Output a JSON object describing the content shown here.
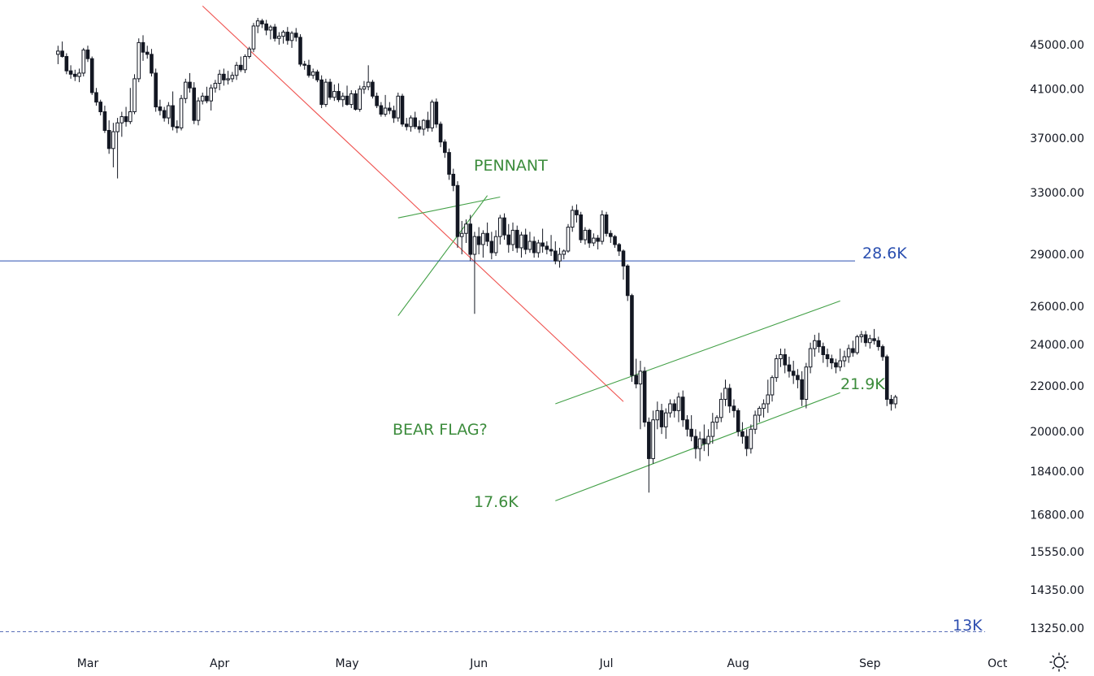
{
  "chart_data": {
    "type": "candlestick",
    "scale": "log",
    "y_ticks": [
      "45000.00",
      "41000.00",
      "37000.00",
      "33000.00",
      "29000.00",
      "26000.00",
      "24000.00",
      "22000.00",
      "20000.00",
      "18400.00",
      "16800.00",
      "15550.00",
      "14350.00",
      "13250.00"
    ],
    "y_tick_values": [
      45000,
      41000,
      37000,
      33000,
      29000,
      26000,
      24000,
      22000,
      20000,
      18400,
      16800,
      15550,
      14350,
      13250
    ],
    "x_ticks": [
      "Mar",
      "Apr",
      "May",
      "Jun",
      "Jul",
      "Aug",
      "Sep",
      "Oct"
    ],
    "x_tick_dates": [
      "2022-03-01",
      "2022-04-01",
      "2022-05-01",
      "2022-06-01",
      "2022-07-01",
      "2022-08-01",
      "2022-09-01",
      "2022-10-01"
    ],
    "first_candle_date": "2022-02-22",
    "candles": [
      [
        44100,
        44900,
        43200,
        44400
      ],
      [
        44400,
        45300,
        43800,
        43900
      ],
      [
        43900,
        44200,
        42300,
        42600
      ],
      [
        42600,
        43100,
        41900,
        42300
      ],
      [
        42300,
        42700,
        41700,
        42100
      ],
      [
        42100,
        42800,
        41600,
        42400
      ],
      [
        42400,
        44700,
        42100,
        44500
      ],
      [
        44500,
        44900,
        43400,
        43700
      ],
      [
        43700,
        43900,
        40500,
        40700
      ],
      [
        40700,
        41100,
        39600,
        39900
      ],
      [
        39900,
        40100,
        38800,
        39100
      ],
      [
        39100,
        39600,
        37400,
        37600
      ],
      [
        37600,
        38400,
        35800,
        36200
      ],
      [
        36200,
        38200,
        34800,
        37500
      ],
      [
        37500,
        38600,
        34000,
        38200
      ],
      [
        38200,
        39100,
        37100,
        38700
      ],
      [
        38700,
        39500,
        37900,
        38300
      ],
      [
        38300,
        41100,
        38100,
        39100
      ],
      [
        39100,
        42300,
        38900,
        41900
      ],
      [
        41900,
        45600,
        41600,
        45200
      ],
      [
        45200,
        45900,
        43500,
        44300
      ],
      [
        44300,
        44900,
        43700,
        44100
      ],
      [
        44100,
        44600,
        42100,
        42400
      ],
      [
        42400,
        42800,
        39100,
        39500
      ],
      [
        39500,
        40100,
        38800,
        39200
      ],
      [
        39200,
        39500,
        38300,
        38600
      ],
      [
        38600,
        39900,
        38100,
        39600
      ],
      [
        39600,
        40800,
        37600,
        37900
      ],
      [
        37900,
        38400,
        37400,
        37800
      ],
      [
        37800,
        40500,
        37600,
        40200
      ],
      [
        40200,
        41900,
        39800,
        41600
      ],
      [
        41600,
        42400,
        40700,
        41100
      ],
      [
        41100,
        41600,
        38100,
        38400
      ],
      [
        38400,
        40300,
        38000,
        40000
      ],
      [
        40000,
        40700,
        39700,
        40400
      ],
      [
        40400,
        41200,
        39800,
        40000
      ],
      [
        40000,
        41400,
        39200,
        41100
      ],
      [
        41100,
        41800,
        40700,
        41500
      ],
      [
        41500,
        42700,
        40900,
        42300
      ],
      [
        42300,
        42800,
        41300,
        41800
      ],
      [
        41800,
        42600,
        41400,
        41900
      ],
      [
        41900,
        42500,
        41600,
        42200
      ],
      [
        42200,
        43400,
        41800,
        43100
      ],
      [
        43100,
        43900,
        42500,
        42700
      ],
      [
        42700,
        44100,
        42400,
        43900
      ],
      [
        43900,
        44800,
        43700,
        44600
      ],
      [
        44600,
        47100,
        44300,
        46800
      ],
      [
        46800,
        47600,
        46100,
        47300
      ],
      [
        47300,
        47500,
        46600,
        47000
      ],
      [
        47000,
        47400,
        45900,
        46400
      ],
      [
        46400,
        46900,
        45500,
        46700
      ],
      [
        46700,
        47000,
        45300,
        45600
      ],
      [
        45600,
        46200,
        45000,
        45800
      ],
      [
        45800,
        46400,
        45100,
        46200
      ],
      [
        46200,
        46700,
        45000,
        45400
      ],
      [
        45400,
        46300,
        44700,
        46100
      ],
      [
        46100,
        46600,
        45300,
        45700
      ],
      [
        45700,
        46000,
        43000,
        43200
      ],
      [
        43200,
        43500,
        42700,
        43100
      ],
      [
        43100,
        43600,
        42000,
        42200
      ],
      [
        42200,
        42800,
        41900,
        42500
      ],
      [
        42500,
        42700,
        41600,
        41800
      ],
      [
        41800,
        42200,
        39400,
        39700
      ],
      [
        39700,
        41900,
        39500,
        41600
      ],
      [
        41600,
        41900,
        40100,
        40300
      ],
      [
        40300,
        41400,
        40000,
        40800
      ],
      [
        40800,
        41500,
        39900,
        40100
      ],
      [
        40100,
        40700,
        39500,
        40400
      ],
      [
        40400,
        41300,
        39600,
        39700
      ],
      [
        39700,
        40900,
        39400,
        40600
      ],
      [
        40600,
        40900,
        39200,
        39300
      ],
      [
        39300,
        41300,
        39100,
        41000
      ],
      [
        41000,
        41700,
        40600,
        41200
      ],
      [
        41200,
        43100,
        40900,
        41600
      ],
      [
        41600,
        41800,
        40200,
        40400
      ],
      [
        40400,
        40700,
        39400,
        39600
      ],
      [
        39600,
        39900,
        38700,
        38900
      ],
      [
        38900,
        40500,
        38700,
        39400
      ],
      [
        39400,
        39900,
        38900,
        39200
      ],
      [
        39200,
        39600,
        38200,
        38600
      ],
      [
        38600,
        40700,
        38300,
        40400
      ],
      [
        40400,
        40600,
        37900,
        38100
      ],
      [
        38100,
        38600,
        37600,
        37900
      ],
      [
        37900,
        38800,
        37500,
        38600
      ],
      [
        38600,
        39100,
        37700,
        37900
      ],
      [
        37900,
        38400,
        37400,
        37700
      ],
      [
        37700,
        38500,
        37200,
        38400
      ],
      [
        38400,
        39100,
        37500,
        37800
      ],
      [
        37800,
        40100,
        37500,
        39900
      ],
      [
        39900,
        40200,
        37800,
        38100
      ],
      [
        38100,
        38300,
        36300,
        36700
      ],
      [
        36700,
        36900,
        35500,
        35900
      ],
      [
        35900,
        36200,
        33900,
        34300
      ],
      [
        34300,
        34700,
        33100,
        33500
      ],
      [
        33500,
        33800,
        29400,
        30100
      ],
      [
        30100,
        31100,
        29000,
        30300
      ],
      [
        30300,
        31200,
        29700,
        30900
      ],
      [
        30900,
        31500,
        28600,
        29000
      ],
      [
        29000,
        30400,
        25600,
        30100
      ],
      [
        30100,
        30700,
        29000,
        29600
      ],
      [
        29600,
        30500,
        28800,
        30300
      ],
      [
        30300,
        31000,
        29500,
        29800
      ],
      [
        29800,
        30400,
        28700,
        29100
      ],
      [
        29100,
        30500,
        28900,
        30100
      ],
      [
        30100,
        31500,
        29600,
        31300
      ],
      [
        31300,
        31600,
        29900,
        30200
      ],
      [
        30200,
        30900,
        29100,
        29600
      ],
      [
        29600,
        31000,
        29200,
        30500
      ],
      [
        30500,
        30800,
        29100,
        29400
      ],
      [
        29400,
        30400,
        28800,
        30200
      ],
      [
        30200,
        30600,
        29000,
        29300
      ],
      [
        29300,
        30400,
        29100,
        29800
      ],
      [
        29800,
        30100,
        28800,
        29100
      ],
      [
        29100,
        29900,
        28800,
        29700
      ],
      [
        29700,
        30600,
        29100,
        29500
      ],
      [
        29500,
        29800,
        29000,
        29300
      ],
      [
        29300,
        30200,
        28900,
        29200
      ],
      [
        29200,
        29800,
        28400,
        28600
      ],
      [
        28600,
        29400,
        28200,
        29000
      ],
      [
        29000,
        29300,
        28700,
        29200
      ],
      [
        29200,
        30900,
        29100,
        30700
      ],
      [
        30700,
        32100,
        30400,
        31800
      ],
      [
        31800,
        32200,
        31000,
        31500
      ],
      [
        31500,
        31700,
        29700,
        29900
      ],
      [
        29900,
        30700,
        29600,
        30500
      ],
      [
        30500,
        30600,
        29400,
        29700
      ],
      [
        29700,
        30300,
        29500,
        30000
      ],
      [
        30000,
        30200,
        29300,
        29800
      ],
      [
        29800,
        31800,
        29600,
        31500
      ],
      [
        31500,
        31700,
        30100,
        30300
      ],
      [
        30300,
        30500,
        29700,
        30100
      ],
      [
        30100,
        30200,
        29400,
        29600
      ],
      [
        29600,
        29700,
        28900,
        29200
      ],
      [
        29200,
        29300,
        27500,
        28300
      ],
      [
        28300,
        28400,
        26300,
        26600
      ],
      [
        26600,
        26700,
        22200,
        22500
      ],
      [
        22500,
        23300,
        21900,
        22100
      ],
      [
        22100,
        23200,
        20100,
        22700
      ],
      [
        22700,
        22900,
        20200,
        20400
      ],
      [
        20400,
        20600,
        17600,
        18900
      ],
      [
        18900,
        20900,
        18700,
        20500
      ],
      [
        20500,
        21300,
        20100,
        20900
      ],
      [
        20900,
        21200,
        19900,
        20200
      ],
      [
        20200,
        21000,
        19700,
        20800
      ],
      [
        20800,
        21400,
        20600,
        21200
      ],
      [
        21200,
        21400,
        20600,
        20900
      ],
      [
        20900,
        21700,
        20400,
        21500
      ],
      [
        21500,
        21800,
        20200,
        20500
      ],
      [
        20500,
        20700,
        19800,
        20100
      ],
      [
        20100,
        20700,
        19600,
        19800
      ],
      [
        19800,
        20100,
        18900,
        19300
      ],
      [
        19300,
        20000,
        18800,
        19700
      ],
      [
        19700,
        20300,
        19200,
        19500
      ],
      [
        19500,
        20100,
        19000,
        19800
      ],
      [
        19800,
        20800,
        19500,
        20400
      ],
      [
        20400,
        20700,
        20100,
        20600
      ],
      [
        20600,
        21700,
        20400,
        21400
      ],
      [
        21400,
        22300,
        21100,
        21900
      ],
      [
        21900,
        22100,
        20800,
        21100
      ],
      [
        21100,
        21400,
        20600,
        20900
      ],
      [
        20900,
        21000,
        19800,
        20000
      ],
      [
        20000,
        20400,
        19500,
        19800
      ],
      [
        19800,
        20100,
        19000,
        19300
      ],
      [
        19300,
        20300,
        19100,
        20100
      ],
      [
        20100,
        20900,
        19900,
        20700
      ],
      [
        20700,
        21100,
        20400,
        21000
      ],
      [
        21000,
        21400,
        20600,
        21200
      ],
      [
        21200,
        22300,
        20800,
        21600
      ],
      [
        21600,
        22500,
        21300,
        22400
      ],
      [
        22400,
        23500,
        22200,
        23300
      ],
      [
        23300,
        23800,
        22900,
        23500
      ],
      [
        23500,
        23800,
        22600,
        23000
      ],
      [
        23000,
        23400,
        22400,
        22700
      ],
      [
        22700,
        23200,
        22100,
        22500
      ],
      [
        22500,
        22800,
        21900,
        22300
      ],
      [
        22300,
        22700,
        21100,
        21400
      ],
      [
        21400,
        23100,
        21000,
        22900
      ],
      [
        22900,
        24100,
        22600,
        23800
      ],
      [
        23800,
        24500,
        23400,
        24200
      ],
      [
        24200,
        24600,
        23600,
        23900
      ],
      [
        23900,
        24100,
        23100,
        23500
      ],
      [
        23500,
        23800,
        22900,
        23300
      ],
      [
        23300,
        23500,
        22800,
        23100
      ],
      [
        23100,
        23300,
        22600,
        22900
      ],
      [
        22900,
        23800,
        22700,
        23200
      ],
      [
        23200,
        23700,
        22900,
        23400
      ],
      [
        23400,
        24000,
        23100,
        23800
      ],
      [
        23800,
        24200,
        23400,
        23600
      ],
      [
        23600,
        24500,
        23500,
        24400
      ],
      [
        24400,
        24700,
        24100,
        24500
      ],
      [
        24500,
        24700,
        23900,
        24100
      ],
      [
        24100,
        24500,
        23800,
        24300
      ],
      [
        24300,
        24800,
        24000,
        24200
      ],
      [
        24200,
        24400,
        23700,
        23900
      ],
      [
        23900,
        24000,
        23200,
        23400
      ],
      [
        23400,
        23500,
        21100,
        21400
      ],
      [
        21400,
        21600,
        20900,
        21200
      ],
      [
        21200,
        21600,
        21000,
        21500
      ]
    ],
    "lines": [
      {
        "points": [
          [
            "2022-03-28",
            48800
          ],
          [
            "2022-07-05",
            21300
          ]
        ],
        "color": "#ef5350"
      },
      {
        "points": [
          [
            "2022-05-13",
            25500
          ],
          [
            "2022-06-03",
            32800
          ]
        ],
        "color": "#43a047"
      },
      {
        "points": [
          [
            "2022-05-13",
            31300
          ],
          [
            "2022-06-06",
            32700
          ]
        ],
        "color": "#43a047"
      },
      {
        "points": [
          [
            "2022-06-19",
            21200
          ],
          [
            "2022-08-25",
            26300
          ]
        ],
        "color": "#43a047"
      },
      {
        "points": [
          [
            "2022-06-19",
            17300
          ],
          [
            "2022-08-25",
            21700
          ]
        ],
        "color": "#43a047"
      }
    ],
    "hlines": [
      {
        "value": 28600,
        "label": "28.6K",
        "style": "solid",
        "color": "#2a4fb0"
      },
      {
        "value": 13150,
        "label": "13K",
        "style": "dashed",
        "color": "#5a6fb8"
      }
    ],
    "annotations": [
      {
        "text": "PENNANT",
        "color": "#3c8c3c"
      },
      {
        "text": "BEAR FLAG?",
        "color": "#3c8c3c"
      },
      {
        "text": "17.6K",
        "color": "#3c8c3c"
      },
      {
        "text": "21.9K",
        "color": "#3c8c3c"
      }
    ],
    "colors": {
      "candle": "#131722",
      "grid": "none"
    }
  }
}
